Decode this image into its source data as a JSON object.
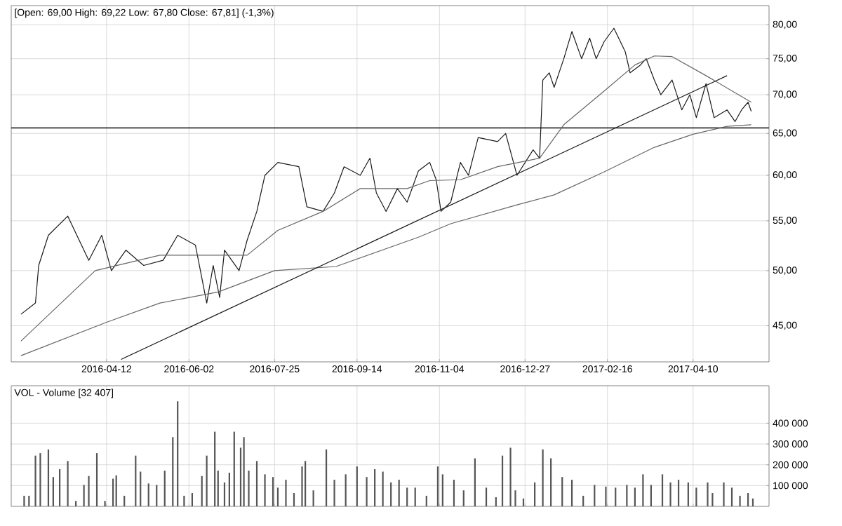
{
  "chart_data": [
    {
      "type": "line",
      "title": "[Open: 69,00 High: 69,22 Low: 67,80 Close: 67,81] (-1,3%)",
      "log": "y",
      "grid": true,
      "xlim": [
        "2016-02-13",
        "2017-05-27"
      ],
      "xticks": [
        "2016-04-12",
        "2016-06-02",
        "2016-07-25",
        "2016-09-14",
        "2016-11-04",
        "2016-12-27",
        "2017-02-16",
        "2017-04-10"
      ],
      "ylim": [
        42,
        83
      ],
      "yticks": [
        {
          "value": 45,
          "label": "45,00"
        },
        {
          "value": 50,
          "label": "50,00"
        },
        {
          "value": 55,
          "label": "55,00"
        },
        {
          "value": 60,
          "label": "60,00"
        },
        {
          "value": 65,
          "label": "65,00"
        },
        {
          "value": 70,
          "label": "70,00"
        },
        {
          "value": 75,
          "label": "75,00"
        },
        {
          "value": 80,
          "label": "80,00"
        }
      ],
      "ref_lines": [
        {
          "axis": "y",
          "value": 65.7,
          "color": "#333333"
        }
      ],
      "series": [
        {
          "color": "#1a1a1a",
          "x": [
            "2016-02-19",
            "2016-02-28",
            "2016-03-01",
            "2016-03-07",
            "2016-03-19",
            "2016-04-01",
            "2016-04-09",
            "2016-04-15",
            "2016-04-24",
            "2016-05-05",
            "2016-05-17",
            "2016-05-26",
            "2016-06-06",
            "2016-06-13",
            "2016-06-17",
            "2016-06-21",
            "2016-06-24",
            "2016-07-03",
            "2016-07-08",
            "2016-07-14",
            "2016-07-19",
            "2016-07-27",
            "2016-08-09",
            "2016-08-14",
            "2016-08-24",
            "2016-08-31",
            "2016-09-06",
            "2016-09-16",
            "2016-09-22",
            "2016-09-26",
            "2016-10-02",
            "2016-10-09",
            "2016-10-15",
            "2016-10-22",
            "2016-10-29",
            "2016-11-02",
            "2016-11-05",
            "2016-11-11",
            "2016-11-17",
            "2016-11-22",
            "2016-11-28",
            "2016-12-10",
            "2016-12-15",
            "2016-12-22",
            "2017-01-01",
            "2017-01-05",
            "2017-01-07",
            "2017-01-11",
            "2017-01-14",
            "2017-01-20",
            "2017-01-25",
            "2017-01-31",
            "2017-02-05",
            "2017-02-09",
            "2017-02-14",
            "2017-02-20",
            "2017-02-27",
            "2017-03-02",
            "2017-03-08",
            "2017-03-12",
            "2017-03-17",
            "2017-03-21",
            "2017-03-28",
            "2017-04-03",
            "2017-04-08",
            "2017-04-12",
            "2017-04-18",
            "2017-04-23",
            "2017-05-01",
            "2017-05-06",
            "2017-05-10",
            "2017-05-14",
            "2017-05-16"
          ],
          "values": [
            46,
            47,
            50.5,
            53.5,
            55.5,
            51,
            53.5,
            50,
            52,
            50.5,
            51,
            53.5,
            52.5,
            47,
            50.5,
            47.5,
            52,
            50,
            53,
            56,
            60,
            61.5,
            61,
            56.5,
            56,
            58,
            61,
            60,
            62,
            58,
            56,
            58.5,
            57,
            60.5,
            61.5,
            59.5,
            56,
            57,
            61.5,
            60,
            64.5,
            64,
            65,
            60,
            63,
            62,
            72,
            73,
            71,
            75,
            79,
            75,
            78,
            75,
            77.5,
            79.5,
            76,
            73,
            74,
            75,
            72,
            70,
            72,
            68,
            70,
            67,
            71.5,
            67,
            68,
            66.5,
            68,
            69,
            67.81
          ]
        },
        {
          "color": "#666666",
          "x": [
            "2016-02-19",
            "2016-04-05",
            "2016-05-15",
            "2016-06-20",
            "2016-07-08",
            "2016-07-27",
            "2016-08-24",
            "2016-09-16",
            "2016-10-15",
            "2016-10-29",
            "2016-11-17",
            "2016-12-10",
            "2017-01-05",
            "2017-01-20",
            "2017-02-14",
            "2017-03-05",
            "2017-03-17",
            "2017-03-28",
            "2017-04-18",
            "2017-05-16"
          ],
          "values": [
            43.7,
            50,
            51.5,
            51.5,
            51.5,
            54,
            56,
            58.5,
            58.5,
            59.4,
            59.5,
            61,
            62,
            66.1,
            70.5,
            74.1,
            75.4,
            75.3,
            72.6,
            69
          ]
        },
        {
          "color": "#666666",
          "x": [
            "2016-02-19",
            "2016-04-12",
            "2016-05-15",
            "2016-06-20",
            "2016-07-25",
            "2016-09-01",
            "2016-10-22",
            "2016-11-11",
            "2016-12-22",
            "2017-01-14",
            "2017-02-14",
            "2017-03-17",
            "2017-04-10",
            "2017-05-01",
            "2017-05-16"
          ],
          "values": [
            42.5,
            45.3,
            47,
            48,
            50,
            50.4,
            53.3,
            54.7,
            56.7,
            57.8,
            60.4,
            63.3,
            64.9,
            65.9,
            66.1
          ]
        },
        {
          "color": "#1a1a1a",
          "x": [
            "2016-04-21",
            "2017-05-01"
          ],
          "values": [
            42.2,
            72.6
          ]
        }
      ]
    },
    {
      "type": "bar",
      "title": "VOL - Volume [32 407]",
      "grid": true,
      "tick_labels": "y",
      "color": "#555555",
      "xlim": [
        "2016-02-13",
        "2017-05-27"
      ],
      "xticks": [
        {
          "value": "2016-04-12",
          "label": null
        },
        {
          "value": "2016-06-02",
          "label": null
        },
        {
          "value": "2016-07-25",
          "label": null
        },
        {
          "value": "2016-09-14",
          "label": null
        },
        {
          "value": "2016-11-04",
          "label": null
        },
        {
          "value": "2016-12-27",
          "label": null
        },
        {
          "value": "2017-02-16",
          "label": null
        },
        {
          "value": "2017-04-10",
          "label": null
        }
      ],
      "ylim": [
        0,
        580000
      ],
      "yticks": [
        {
          "value": 100000,
          "label": "100 000"
        },
        {
          "value": 200000,
          "label": "200 000"
        },
        {
          "value": 300000,
          "label": "300 000"
        },
        {
          "value": 400000,
          "label": "400 000"
        }
      ],
      "x": [
        "2016-02-21",
        "2016-02-24",
        "2016-02-28",
        "2016-03-02",
        "2016-03-07",
        "2016-03-10",
        "2016-03-14",
        "2016-03-19",
        "2016-03-24",
        "2016-03-29",
        "2016-04-01",
        "2016-04-06",
        "2016-04-11",
        "2016-04-16",
        "2016-04-18",
        "2016-04-23",
        "2016-04-30",
        "2016-05-03",
        "2016-05-08",
        "2016-05-13",
        "2016-05-18",
        "2016-05-23",
        "2016-05-26",
        "2016-05-30",
        "2016-06-04",
        "2016-06-10",
        "2016-06-13",
        "2016-06-18",
        "2016-06-20",
        "2016-06-24",
        "2016-06-27",
        "2016-06-30",
        "2016-07-04",
        "2016-07-06",
        "2016-07-09",
        "2016-07-14",
        "2016-07-19",
        "2016-07-24",
        "2016-07-27",
        "2016-08-01",
        "2016-08-06",
        "2016-08-11",
        "2016-08-13",
        "2016-08-18",
        "2016-08-26",
        "2016-08-31",
        "2016-09-07",
        "2016-09-14",
        "2016-09-20",
        "2016-09-25",
        "2016-09-30",
        "2016-10-05",
        "2016-10-10",
        "2016-10-15",
        "2016-10-20",
        "2016-10-27",
        "2016-11-03",
        "2016-11-06",
        "2016-11-13",
        "2016-11-19",
        "2016-11-26",
        "2016-12-03",
        "2016-12-09",
        "2016-12-13",
        "2016-12-18",
        "2016-12-21",
        "2016-12-26",
        "2017-01-02",
        "2017-01-07",
        "2017-01-12",
        "2017-01-19",
        "2017-01-25",
        "2017-02-01",
        "2017-02-08",
        "2017-02-15",
        "2017-02-21",
        "2017-02-28",
        "2017-03-05",
        "2017-03-10",
        "2017-03-15",
        "2017-03-22",
        "2017-03-27",
        "2017-04-01",
        "2017-04-07",
        "2017-04-12",
        "2017-04-19",
        "2017-04-22",
        "2017-04-29",
        "2017-05-04",
        "2017-05-09",
        "2017-05-14",
        "2017-05-17"
      ],
      "values": [
        51000,
        51000,
        244000,
        256000,
        274000,
        141000,
        179000,
        218000,
        26000,
        103000,
        146000,
        256000,
        26000,
        133000,
        149000,
        51000,
        244000,
        167000,
        110000,
        103000,
        172000,
        333000,
        505000,
        51000,
        64000,
        146000,
        244000,
        359000,
        172000,
        115000,
        162000,
        359000,
        282000,
        333000,
        172000,
        218000,
        154000,
        141000,
        90000,
        128000,
        64000,
        192000,
        218000,
        77000,
        274000,
        128000,
        154000,
        192000,
        141000,
        179000,
        167000,
        115000,
        128000,
        90000,
        90000,
        51000,
        192000,
        154000,
        128000,
        77000,
        231000,
        90000,
        44000,
        244000,
        282000,
        77000,
        38000,
        115000,
        274000,
        231000,
        141000,
        128000,
        51000,
        103000,
        95000,
        90000,
        103000,
        90000,
        154000,
        103000,
        154000,
        115000,
        128000,
        115000,
        90000,
        115000,
        64000,
        115000,
        90000,
        51000,
        64000,
        38000
      ]
    }
  ]
}
